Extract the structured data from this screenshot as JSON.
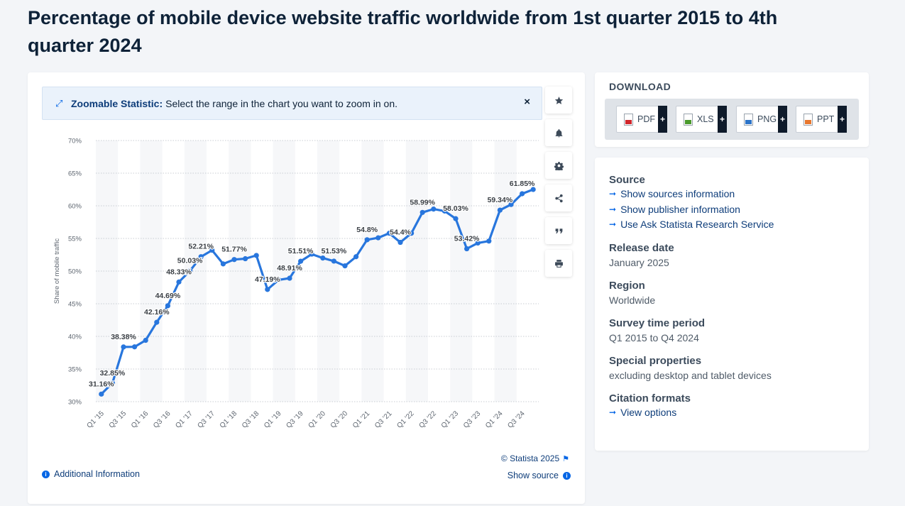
{
  "page": {
    "title": "Percentage of mobile device website traffic worldwide from 1st quarter 2015 to 4th quarter 2024"
  },
  "zoom_banner": {
    "label": "Zoomable Statistic:",
    "text": "Select the range in the chart you want to zoom in on.",
    "close": "×"
  },
  "toolbar": [
    "star-icon",
    "bell-icon",
    "gear-icon",
    "share-icon",
    "quote-icon",
    "print-icon"
  ],
  "chart_footer": {
    "credit": "© Statista 2025",
    "additional_info": "Additional Information",
    "show_source": "Show source"
  },
  "download": {
    "title": "DOWNLOAD",
    "buttons": [
      {
        "label": "PDF",
        "color": "#d1262b"
      },
      {
        "label": "XLS",
        "color": "#4a9a2c"
      },
      {
        "label": "PNG",
        "color": "#2b73c8"
      },
      {
        "label": "PPT",
        "color": "#e8772e"
      }
    ],
    "plus": "+"
  },
  "info": {
    "source_heading": "Source",
    "source_links": [
      "Show sources information",
      "Show publisher information",
      "Use Ask Statista Research Service"
    ],
    "release_heading": "Release date",
    "release_value": "January 2025",
    "region_heading": "Region",
    "region_value": "Worldwide",
    "survey_heading": "Survey time period",
    "survey_value": "Q1 2015 to Q4 2024",
    "special_heading": "Special properties",
    "special_value": "excluding desktop and tablet devices",
    "citation_heading": "Citation formats",
    "citation_link": "View options"
  },
  "colors": {
    "line": "#2876dd",
    "accent": "#0666e5",
    "title": "#0e2238"
  },
  "chart_data": {
    "type": "line",
    "ylabel": "Share of mobile traffic",
    "ylim": [
      30,
      70
    ],
    "yticks": [
      30,
      35,
      40,
      45,
      50,
      55,
      60,
      65,
      70
    ],
    "ytick_labels": [
      "30%",
      "35%",
      "40%",
      "45%",
      "50%",
      "55%",
      "60%",
      "65%",
      "70%"
    ],
    "tick_categories": [
      "Q1 '15",
      "Q3 '15",
      "Q1 '16",
      "Q3 '16",
      "Q1 '17",
      "Q3 '17",
      "Q1 '18",
      "Q3 '18",
      "Q1 '19",
      "Q3 '19",
      "Q1 '20",
      "Q3 '20",
      "Q1 '21",
      "Q3 '21",
      "Q1 '22",
      "Q3 '22",
      "Q1 '23",
      "Q3 '23",
      "Q1 '24",
      "Q3 '24"
    ],
    "categories": [
      "Q1 '15",
      "Q2 '15",
      "Q3 '15",
      "Q4 '15",
      "Q1 '16",
      "Q2 '16",
      "Q3 '16",
      "Q4 '16",
      "Q1 '17",
      "Q2 '17",
      "Q3 '17",
      "Q4 '17",
      "Q1 '18",
      "Q2 '18",
      "Q3 '18",
      "Q4 '18",
      "Q1 '19",
      "Q2 '19",
      "Q3 '19",
      "Q4 '19",
      "Q1 '20",
      "Q2 '20",
      "Q3 '20",
      "Q4 '20",
      "Q1 '21",
      "Q2 '21",
      "Q3 '21",
      "Q4 '21",
      "Q1 '22",
      "Q2 '22",
      "Q3 '22",
      "Q4 '22",
      "Q1 '23",
      "Q2 '23",
      "Q3 '23",
      "Q4 '23",
      "Q1 '24",
      "Q2 '24",
      "Q3 '24",
      "Q4 '24"
    ],
    "values": [
      31.16,
      32.85,
      38.38,
      38.4,
      39.4,
      42.16,
      44.69,
      48.33,
      50.03,
      52.21,
      53.2,
      51.1,
      51.77,
      51.9,
      52.4,
      47.19,
      48.65,
      48.91,
      51.51,
      52.6,
      52.0,
      51.53,
      50.8,
      52.2,
      54.8,
      55.1,
      55.8,
      54.4,
      55.8,
      58.99,
      59.5,
      59.2,
      58.03,
      53.42,
      54.3,
      54.6,
      59.34,
      60.2,
      61.85,
      62.5
    ],
    "data_labels": [
      {
        "index": 0,
        "text": "31.16%"
      },
      {
        "index": 1,
        "text": "32.85%"
      },
      {
        "index": 2,
        "text": "38.38%"
      },
      {
        "index": 5,
        "text": "42.16%"
      },
      {
        "index": 6,
        "text": "44.69%"
      },
      {
        "index": 7,
        "text": "48.33%"
      },
      {
        "index": 8,
        "text": "50.03%"
      },
      {
        "index": 9,
        "text": "52.21%"
      },
      {
        "index": 12,
        "text": "51.77%"
      },
      {
        "index": 15,
        "text": "47.19%"
      },
      {
        "index": 17,
        "text": "48.91%"
      },
      {
        "index": 18,
        "text": "51.51%"
      },
      {
        "index": 21,
        "text": "51.53%"
      },
      {
        "index": 24,
        "text": "54.8%"
      },
      {
        "index": 27,
        "text": "54.4%"
      },
      {
        "index": 29,
        "text": "58.99%"
      },
      {
        "index": 32,
        "text": "58.03%"
      },
      {
        "index": 33,
        "text": "53.42%"
      },
      {
        "index": 36,
        "text": "59.34%"
      },
      {
        "index": 38,
        "text": "61.85%"
      }
    ],
    "grid": true
  }
}
